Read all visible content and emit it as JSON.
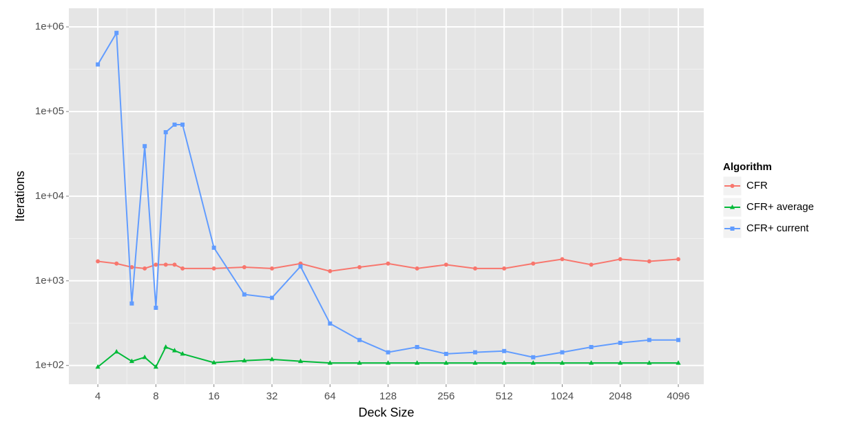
{
  "chart_data": {
    "type": "line",
    "x_label": "Deck Size",
    "y_label": "Iterations",
    "x_log": true,
    "y_log": true,
    "grid": true,
    "legend_title": "Algorithm",
    "legend_position": "right",
    "x": [
      4,
      5,
      6,
      7,
      8,
      9,
      10,
      11,
      16,
      23,
      32,
      45,
      64,
      91,
      128,
      181,
      256,
      362,
      512,
      724,
      1024,
      1448,
      2048,
      2896,
      4096
    ],
    "series": [
      {
        "name": "CFR",
        "color": "#F8766D",
        "marker": "circle",
        "values": [
          1700,
          1600,
          1450,
          1400,
          1550,
          1550,
          1550,
          1400,
          1400,
          1450,
          1400,
          1600,
          1300,
          1450,
          1600,
          1400,
          1550,
          1400,
          1400,
          1600,
          1800,
          1550,
          1800,
          1700,
          1800
        ]
      },
      {
        "name": "CFR+ average",
        "color": "#00BA38",
        "marker": "triangle",
        "values": [
          96,
          145,
          112,
          125,
          96,
          165,
          150,
          137,
          108,
          114,
          118,
          112,
          107,
          107,
          107,
          107,
          107,
          107,
          107,
          107,
          107,
          107,
          107,
          107,
          107
        ]
      },
      {
        "name": "CFR+ current",
        "color": "#619CFF",
        "marker": "square",
        "values": [
          360000,
          850000,
          540,
          39000,
          480,
          57000,
          70000,
          70000,
          2460,
          690,
          630,
          1480,
          313,
          200,
          143,
          165,
          137,
          143,
          148,
          125,
          143,
          165,
          185,
          200,
          200
        ]
      }
    ],
    "xlim": [
      2.83,
      5550
    ],
    "xticks": [
      4,
      8,
      16,
      32,
      64,
      128,
      256,
      512,
      1024,
      2048,
      4096
    ],
    "ylim": [
      60,
      1660000
    ],
    "yticks": [
      {
        "value": 100,
        "label": "1e+02"
      },
      {
        "value": 1000,
        "label": "1e+03"
      },
      {
        "value": 10000,
        "label": "1e+04"
      },
      {
        "value": 100000,
        "label": "1e+05"
      },
      {
        "value": 1000000,
        "label": "1e+06"
      }
    ]
  }
}
